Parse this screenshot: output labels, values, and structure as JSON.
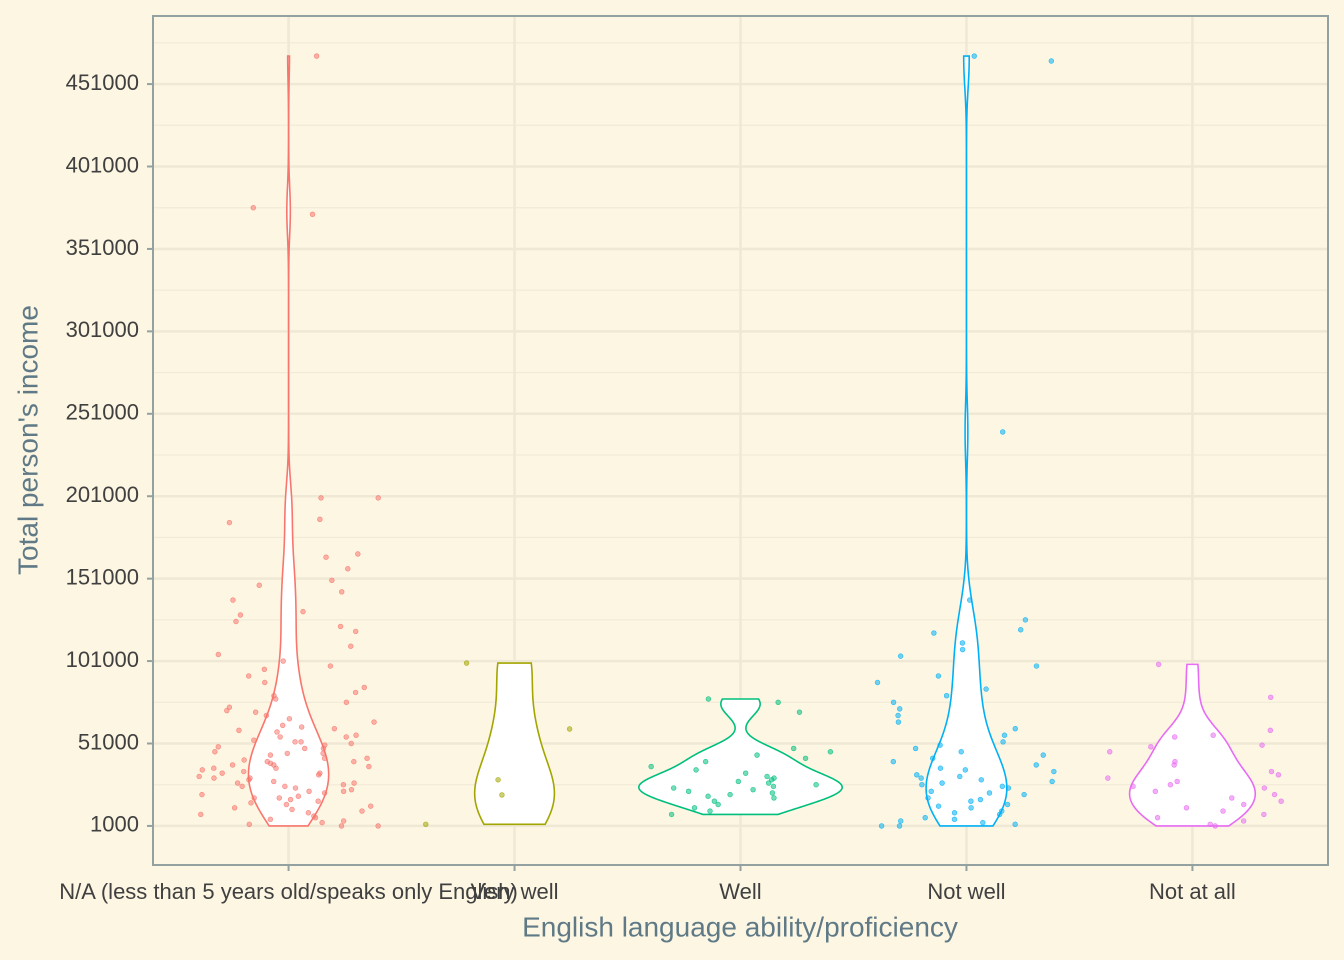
{
  "chart_data": {
    "type": "violin",
    "x_label": "English language ability/proficiency",
    "y_label": "Total person's income",
    "categories": [
      "N/A (less than 5 years old/speaks only English)",
      "Very well",
      "Well",
      "Not well",
      "Not at all"
    ],
    "ylim": [
      -22700,
      492300
    ],
    "yticks": [
      1000,
      51000,
      101000,
      151000,
      201000,
      251000,
      301000,
      351000,
      401000,
      451000
    ],
    "grid": true,
    "series": [
      {
        "name": "N/A (less than 5 years old/speaks only English)",
        "color": "#F8766D",
        "values": [
          468000,
          376000,
          372000,
          200000,
          200000,
          187000,
          185000,
          166000,
          164000,
          157000,
          150000,
          147000,
          143000,
          138000,
          131000,
          129000,
          125000,
          122000,
          119000,
          110000,
          105000,
          101000,
          98000,
          96000,
          92000,
          88000,
          85000,
          82000,
          80000,
          78000,
          76000,
          73000,
          71000,
          70000,
          68000,
          66000,
          64000,
          62000,
          60000,
          59000,
          58000,
          56000,
          55000,
          53000,
          52000,
          51000,
          50000,
          49000,
          48000,
          46000,
          45000,
          44000,
          42000,
          41000,
          40000,
          39000,
          38000,
          37000,
          36000,
          35000,
          34000,
          33000,
          32000,
          31000,
          30000,
          29000,
          28000,
          27000,
          26000,
          25000,
          24000,
          23000,
          22000,
          21000,
          20000,
          19000,
          18000,
          17000,
          16000,
          15000,
          14000,
          13000,
          12000,
          11000,
          10000,
          9000,
          8000,
          7000,
          6000,
          5000,
          4000,
          3000,
          2000,
          1000,
          1000,
          45000,
          38000,
          52000,
          33000,
          27000,
          61000,
          48000,
          36000,
          42000,
          30000,
          25000,
          55000,
          22000,
          18000,
          40000
        ]
      },
      {
        "name": "Very well",
        "color": "#A3A500",
        "values": [
          99800,
          59800,
          29000,
          19800,
          2000
        ]
      },
      {
        "name": "Well",
        "color": "#00BF7D",
        "values": [
          78000,
          76000,
          70000,
          48000,
          46000,
          44000,
          42000,
          40000,
          37000,
          35000,
          33000,
          31000,
          30000,
          29000,
          28000,
          27000,
          26000,
          25000,
          24000,
          23000,
          22000,
          21000,
          20000,
          19000,
          18000,
          16000,
          14000,
          12000,
          10000,
          8000
        ]
      },
      {
        "name": "Not well",
        "color": "#00B0F6",
        "values": [
          468000,
          465000,
          240000,
          138000,
          126000,
          120000,
          118000,
          112000,
          108000,
          104000,
          98000,
          92000,
          88000,
          84000,
          80000,
          76000,
          72000,
          68000,
          64000,
          60000,
          56000,
          52000,
          50000,
          48000,
          46000,
          44000,
          42000,
          40000,
          38000,
          36000,
          34000,
          32000,
          30000,
          29000,
          28000,
          26000,
          24000,
          22000,
          20000,
          18000,
          16000,
          14000,
          12000,
          10000,
          8000,
          6000,
          4000,
          2000,
          1000,
          1000,
          35000,
          31000,
          27000,
          25000,
          21000,
          17000,
          13000,
          9000,
          5000,
          3000
        ]
      },
      {
        "name": "Not at all",
        "color": "#E76BF3",
        "values": [
          99000,
          79000,
          59000,
          56000,
          55000,
          50000,
          49000,
          46000,
          40000,
          38000,
          34000,
          32000,
          30000,
          28000,
          26000,
          25000,
          24000,
          22000,
          20000,
          18000,
          16000,
          14000,
          12000,
          10000,
          8000,
          6000,
          4000,
          2000,
          1000
        ]
      }
    ]
  }
}
